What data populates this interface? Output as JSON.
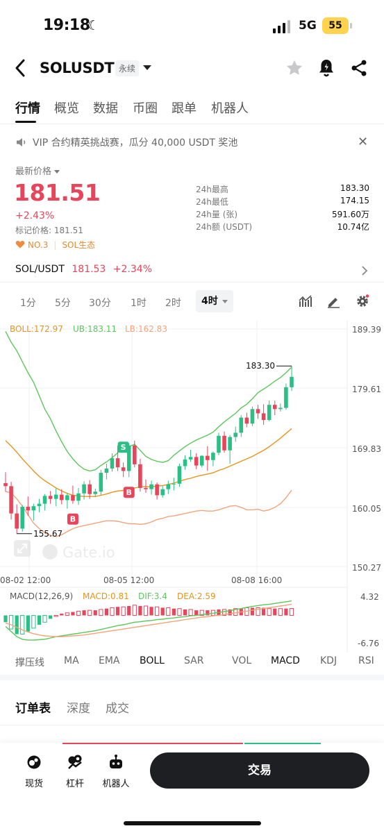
{
  "status": {
    "time": "19:18",
    "network": "5G",
    "battery": "55"
  },
  "header": {
    "symbol": "SOLUSDT",
    "contract": "永续"
  },
  "tabs": [
    "行情",
    "概览",
    "数据",
    "币圈",
    "跟单",
    "机器人"
  ],
  "announcement": "VIP 合约精英挑战赛，瓜分 40,000 USDT 奖池",
  "price": {
    "label": "最新价格",
    "last": "181.51",
    "change": "+2.43%",
    "mark": "标记价格: 181.51",
    "rank": "NO.3",
    "tag": "SOL生态"
  },
  "stats": [
    {
      "k": "24h最高",
      "v": "183.30"
    },
    {
      "k": "24h最低",
      "v": "174.15"
    },
    {
      "k": "24h量 (张)",
      "v": "591.60万"
    },
    {
      "k": "24h额 (USDT)",
      "v": "10.74亿"
    }
  ],
  "spot": {
    "pair": "SOL/USDT",
    "price": "181.53",
    "change": "+2.34%"
  },
  "intervals": [
    "1分",
    "5分",
    "30分",
    "1时",
    "2时",
    "4时"
  ],
  "chart": {
    "boll": {
      "mid": "BOLL:172.97",
      "ub": "UB:183.11",
      "lb": "LB:162.83"
    },
    "y_ticks": [
      "189.39",
      "179.61",
      "169.83",
      "160.05",
      "150.27"
    ],
    "x_ticks": [
      "08-02 12:00",
      "08-05 12:00",
      "08-08 16:00"
    ],
    "high_label": "183.30",
    "low_label": "155.67",
    "watermark": "Gate.io",
    "macd": {
      "title": "MACD(12,26,9)",
      "macd": "MACD:0.81",
      "dif": "DIF:3.4",
      "dea": "DEA:2.59",
      "top": "4.32",
      "bottom": "-6.76"
    },
    "markers": {
      "buy": "B",
      "sell": "S"
    }
  },
  "chart_data": {
    "type": "candlestick",
    "ylim": [
      150.27,
      189.39
    ],
    "candles": [
      [
        164.0,
        165.8,
        162.6,
        163.5
      ],
      [
        163.5,
        164.2,
        158.0,
        159.0
      ],
      [
        159.0,
        160.5,
        155.67,
        156.5
      ],
      [
        156.5,
        160.4,
        156.0,
        160.1
      ],
      [
        160.1,
        161.8,
        158.6,
        159.5
      ],
      [
        159.5,
        160.6,
        157.8,
        160.2
      ],
      [
        160.2,
        161.4,
        159.2,
        160.6
      ],
      [
        160.6,
        162.2,
        159.5,
        161.9
      ],
      [
        161.9,
        162.7,
        160.6,
        161.4
      ],
      [
        161.4,
        163.1,
        160.2,
        162.1
      ],
      [
        162.1,
        163.0,
        160.5,
        161.2
      ],
      [
        161.2,
        162.4,
        159.8,
        162.0
      ],
      [
        162.0,
        163.6,
        160.6,
        161.1
      ],
      [
        161.1,
        163.2,
        160.4,
        162.3
      ],
      [
        162.3,
        164.3,
        161.3,
        163.8
      ],
      [
        163.8,
        164.5,
        161.4,
        162.2
      ],
      [
        162.2,
        163.1,
        161.7,
        162.6
      ],
      [
        162.6,
        166.2,
        162.0,
        165.7
      ],
      [
        165.7,
        167.2,
        164.6,
        166.4
      ],
      [
        166.4,
        168.9,
        165.9,
        168.1
      ],
      [
        168.1,
        170.2,
        166.0,
        166.6
      ],
      [
        166.6,
        167.4,
        165.0,
        166.0
      ],
      [
        166.0,
        170.6,
        165.0,
        170.2
      ],
      [
        170.2,
        171.0,
        166.6,
        167.1
      ],
      [
        167.1,
        168.0,
        162.6,
        163.2
      ],
      [
        163.2,
        164.6,
        162.4,
        163.0
      ],
      [
        163.0,
        164.4,
        162.1,
        163.8
      ],
      [
        163.8,
        164.1,
        161.3,
        162.0
      ],
      [
        162.0,
        163.5,
        161.6,
        163.0
      ],
      [
        163.0,
        164.4,
        162.2,
        163.8
      ],
      [
        163.8,
        164.9,
        162.8,
        163.9
      ],
      [
        163.9,
        167.2,
        163.4,
        166.8
      ],
      [
        166.8,
        168.6,
        166.2,
        167.9
      ],
      [
        167.9,
        169.5,
        167.5,
        168.3
      ],
      [
        168.3,
        168.9,
        166.3,
        166.9
      ],
      [
        166.9,
        168.6,
        166.6,
        168.5
      ],
      [
        168.5,
        170.1,
        166.0,
        167.8
      ],
      [
        167.8,
        169.2,
        166.8,
        169.0
      ],
      [
        169.0,
        172.3,
        168.6,
        171.8
      ],
      [
        171.8,
        172.5,
        169.0,
        169.4
      ],
      [
        169.4,
        171.9,
        167.2,
        171.6
      ],
      [
        171.6,
        173.3,
        170.8,
        172.3
      ],
      [
        172.3,
        175.2,
        171.6,
        174.8
      ],
      [
        174.8,
        175.6,
        173.2,
        173.8
      ],
      [
        173.8,
        176.6,
        173.4,
        176.2
      ],
      [
        176.2,
        176.9,
        174.6,
        175.5
      ],
      [
        175.5,
        177.0,
        173.6,
        174.4
      ],
      [
        174.4,
        177.6,
        174.2,
        176.9
      ],
      [
        176.9,
        177.6,
        175.2,
        176.2
      ],
      [
        176.2,
        177.1,
        175.8,
        176.4
      ],
      [
        176.4,
        180.4,
        176.1,
        179.8
      ],
      [
        179.8,
        183.3,
        179.2,
        181.51
      ]
    ],
    "boll_upper": [
      189.0,
      187.2,
      185.8,
      184.0,
      182.2,
      180.6,
      178.4,
      176.2,
      174.6,
      172.6,
      170.8,
      169.2,
      168.0,
      167.0,
      166.3,
      166.0,
      166.2,
      166.9,
      167.5,
      168.2,
      169.0,
      170.0,
      170.0,
      170.4,
      169.4,
      168.4,
      167.9,
      167.6,
      167.4,
      167.7,
      168.6,
      169.3,
      170.0,
      170.6,
      171.1,
      171.5,
      171.9,
      172.4,
      173.3,
      174.1,
      174.8,
      175.5,
      176.4,
      177.0,
      177.9,
      178.9,
      179.5,
      180.1,
      180.8,
      181.4,
      182.2,
      183.11
    ],
    "boll_mid": [
      171.0,
      170.1,
      169.1,
      168.0,
      167.0,
      166.0,
      165.1,
      164.4,
      163.8,
      163.2,
      162.7,
      162.3,
      162.0,
      161.9,
      161.8,
      161.8,
      161.8,
      162.0,
      162.2,
      162.5,
      162.7,
      162.8,
      163.0,
      163.2,
      163.4,
      163.4,
      163.4,
      163.5,
      163.6,
      163.8,
      164.0,
      164.3,
      164.6,
      164.8,
      165.1,
      165.3,
      165.5,
      165.7,
      166.1,
      166.4,
      166.8,
      167.2,
      167.6,
      168.0,
      168.4,
      168.9,
      169.4,
      170.0,
      170.7,
      171.4,
      172.2,
      172.97
    ],
    "boll_lower": [
      162.6,
      162.4,
      161.4,
      160.2,
      158.8,
      157.4,
      156.5,
      155.8,
      155.4,
      155.2,
      155.5,
      156.0,
      156.5,
      156.8,
      157.0,
      157.2,
      157.4,
      157.6,
      157.8,
      157.8,
      157.7,
      157.5,
      157.3,
      157.3,
      157.2,
      157.3,
      157.6,
      158.0,
      158.2,
      158.5,
      158.6,
      158.8,
      159.0,
      159.2,
      159.4,
      159.5,
      159.4,
      159.4,
      159.6,
      159.9,
      160.2,
      160.3,
      160.0,
      159.6,
      159.6,
      159.7,
      159.4,
      159.6,
      160.0,
      160.6,
      161.6,
      162.83
    ],
    "macd_ylim": [
      -6.76,
      4.32
    ],
    "dif": [
      -2.6,
      -3.8,
      -5.0,
      -5.6,
      -5.8,
      -5.8,
      -5.7,
      -5.6,
      -5.3,
      -5.0,
      -4.8,
      -4.6,
      -4.4,
      -4.2,
      -4.0,
      -3.8,
      -3.6,
      -3.3,
      -3.0,
      -2.7,
      -2.4,
      -2.2,
      -1.9,
      -1.6,
      -1.5,
      -1.3,
      -1.2,
      -1.0,
      -0.9,
      -0.7,
      -0.6,
      -0.4,
      -0.3,
      -0.1,
      0.0,
      0.2,
      0.3,
      0.5,
      0.7,
      0.9,
      1.1,
      1.4,
      1.6,
      1.9,
      2.1,
      2.3,
      2.5,
      2.6,
      2.8,
      3.0,
      3.2,
      3.4
    ],
    "dea": [
      -1.8,
      -2.2,
      -2.8,
      -3.4,
      -3.9,
      -4.3,
      -4.6,
      -4.8,
      -4.9,
      -5.0,
      -5.0,
      -4.9,
      -4.8,
      -4.7,
      -4.6,
      -4.4,
      -4.2,
      -4.0,
      -3.8,
      -3.6,
      -3.4,
      -3.2,
      -3.0,
      -2.8,
      -2.6,
      -2.4,
      -2.2,
      -2.0,
      -1.8,
      -1.6,
      -1.4,
      -1.2,
      -1.0,
      -0.8,
      -0.6,
      -0.4,
      -0.3,
      -0.1,
      0.0,
      0.2,
      0.4,
      0.6,
      0.8,
      1.0,
      1.2,
      1.4,
      1.6,
      1.8,
      2.0,
      2.2,
      2.4,
      2.59
    ],
    "buy_markers": [
      12,
      22
    ],
    "sell_markers": [
      21
    ]
  },
  "indicators": [
    "撑压线",
    "MA",
    "EMA",
    "BOLL",
    "SAR",
    "VOL",
    "MACD",
    "KDJ",
    "RSI"
  ],
  "order_tabs": [
    "订单表",
    "深度",
    "成交"
  ],
  "bottom_nav": [
    "现货",
    "杠杆",
    "机器人"
  ],
  "trade_button": "交易",
  "colors": {
    "up": "#2bbf86",
    "down": "#e8445a",
    "boll_mid": "#e8941a",
    "boll_upper": "#5ac85a",
    "boll_lower": "#f3a37a"
  }
}
